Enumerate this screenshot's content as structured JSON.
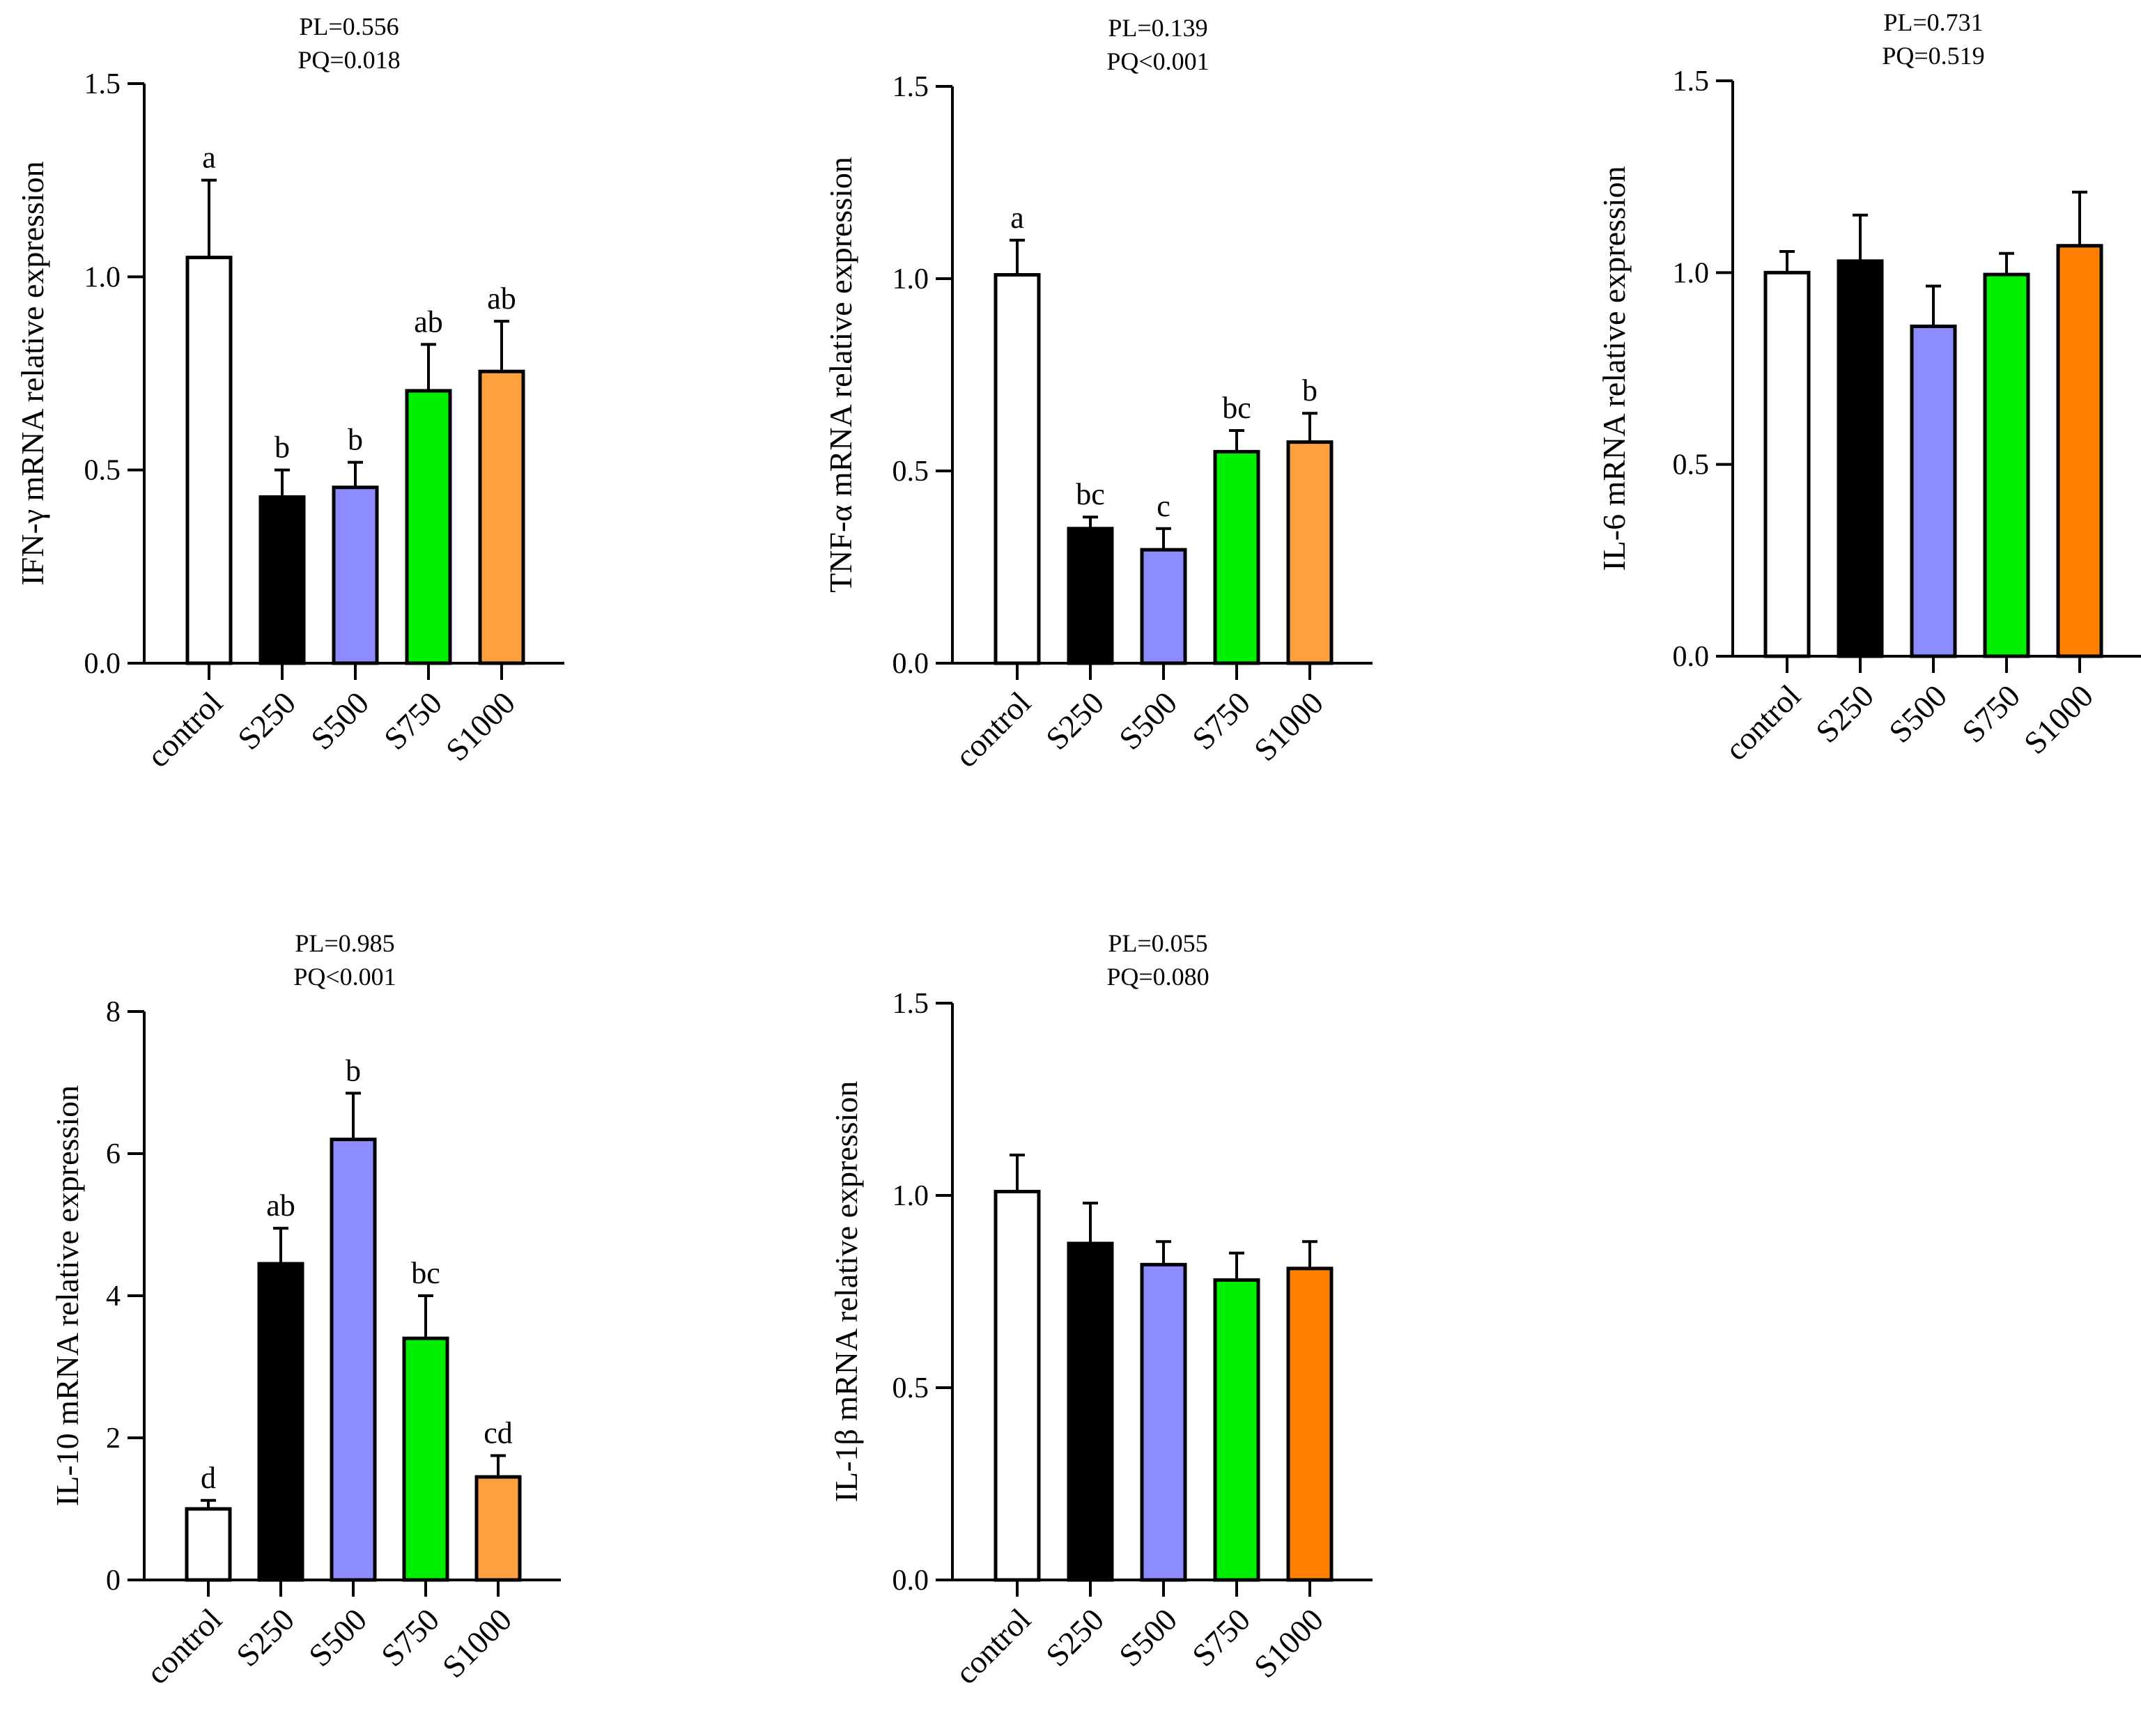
{
  "chart_data": [
    {
      "type": "bar",
      "ylabel": "IFN-γ mRNA relative expression",
      "stats": [
        "PL=0.556",
        "PQ=0.018"
      ],
      "categories": [
        "control",
        "S250",
        "S500",
        "S750",
        "S1000"
      ],
      "values": [
        1.05,
        0.43,
        0.455,
        0.705,
        0.755
      ],
      "errors": [
        0.2,
        0.07,
        0.065,
        0.12,
        0.13
      ],
      "labels": [
        "a",
        "b",
        "b",
        "ab",
        "ab"
      ],
      "ylim": [
        0,
        1.5
      ],
      "yticks": [
        0,
        0.5,
        1.0,
        1.5
      ],
      "ytick_labels": [
        "0.0",
        "0.5",
        "1.0",
        "1.5"
      ],
      "colors": [
        "#ffffff",
        "#000000",
        "#8c8cff",
        "#00ee00",
        "#ffa040"
      ]
    },
    {
      "type": "bar",
      "ylabel": "TNF-α mRNA relative expression",
      "stats": [
        "PL=0.139",
        "PQ<0.001"
      ],
      "categories": [
        "control",
        "S250",
        "S500",
        "S750",
        "S1000"
      ],
      "values": [
        1.01,
        0.35,
        0.295,
        0.55,
        0.575
      ],
      "errors": [
        0.09,
        0.03,
        0.055,
        0.055,
        0.075
      ],
      "labels": [
        "a",
        "bc",
        "c",
        "bc",
        "b"
      ],
      "ylim": [
        0,
        1.5
      ],
      "yticks": [
        0,
        0.5,
        1.0,
        1.5
      ],
      "ytick_labels": [
        "0.0",
        "0.5",
        "1.0",
        "1.5"
      ],
      "colors": [
        "#ffffff",
        "#000000",
        "#8c8cff",
        "#00ee00",
        "#ffa040"
      ]
    },
    {
      "type": "bar",
      "ylabel": "IL-6 mRNA relative expression",
      "stats": [
        "PL=0.731",
        "PQ=0.519"
      ],
      "categories": [
        "control",
        "S250",
        "S500",
        "S750",
        "S1000"
      ],
      "values": [
        1.0,
        1.03,
        0.86,
        0.995,
        1.07
      ],
      "errors": [
        0.055,
        0.12,
        0.105,
        0.055,
        0.14
      ],
      "labels": [
        "",
        "",
        "",
        "",
        ""
      ],
      "ylim": [
        0,
        1.5
      ],
      "yticks": [
        0,
        0.5,
        1.0,
        1.5
      ],
      "ytick_labels": [
        "0.0",
        "0.5",
        "1.0",
        "1.5"
      ],
      "colors": [
        "#ffffff",
        "#000000",
        "#8c8cff",
        "#00ee00",
        "#ff8000"
      ]
    },
    {
      "type": "bar",
      "ylabel": "IL-10 mRNA relative expression",
      "stats": [
        "PL=0.985",
        "PQ<0.001"
      ],
      "categories": [
        "control",
        "S250",
        "S500",
        "S750",
        "S1000"
      ],
      "values": [
        1.0,
        4.45,
        6.2,
        3.4,
        1.45
      ],
      "errors": [
        0.12,
        0.5,
        0.65,
        0.6,
        0.3
      ],
      "labels": [
        "d",
        "ab",
        "b",
        "bc",
        "cd"
      ],
      "ylim": [
        0,
        8
      ],
      "yticks": [
        0,
        2,
        4,
        6,
        8
      ],
      "ytick_labels": [
        "0",
        "2",
        "4",
        "6",
        "8"
      ],
      "colors": [
        "#ffffff",
        "#000000",
        "#8c8cff",
        "#00ee00",
        "#ffa040"
      ]
    },
    {
      "type": "bar",
      "ylabel": "IL-1β mRNA relative expression",
      "stats": [
        "PL=0.055",
        "PQ=0.080"
      ],
      "categories": [
        "control",
        "S250",
        "S500",
        "S750",
        "S1000"
      ],
      "values": [
        1.01,
        0.875,
        0.82,
        0.78,
        0.81
      ],
      "errors": [
        0.095,
        0.105,
        0.06,
        0.07,
        0.07
      ],
      "labels": [
        "",
        "",
        "",
        "",
        ""
      ],
      "ylim": [
        0,
        1.5
      ],
      "yticks": [
        0,
        0.5,
        1.0,
        1.5
      ],
      "ytick_labels": [
        "0.0",
        "0.5",
        "1.0",
        "1.5"
      ],
      "colors": [
        "#ffffff",
        "#000000",
        "#8c8cff",
        "#00ee00",
        "#ff8000"
      ]
    }
  ]
}
